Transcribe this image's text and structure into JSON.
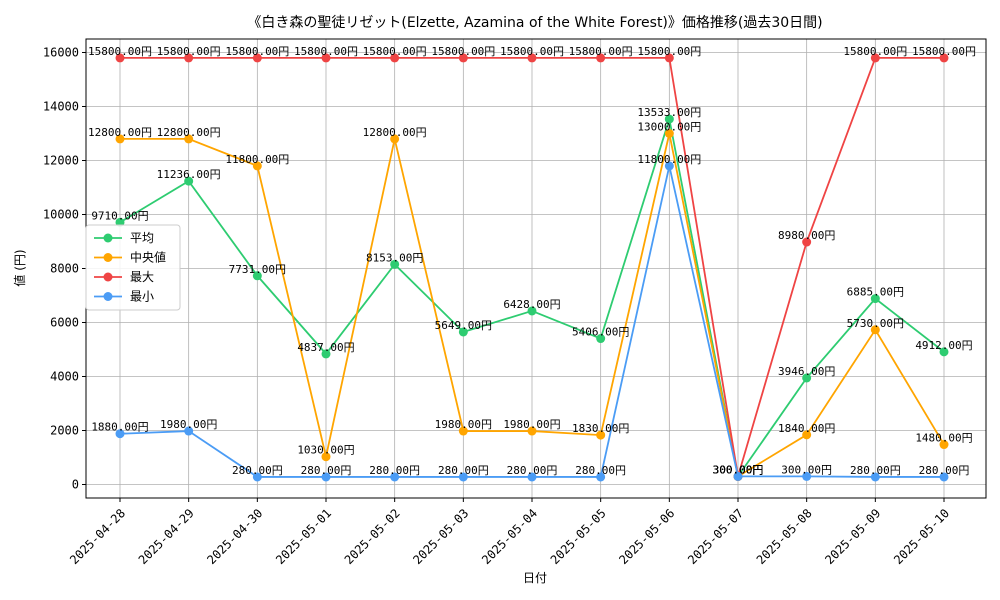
{
  "chart_data": {
    "type": "line",
    "title": "《白き森の聖徒リゼット(Elzette, Azamina of the White Forest)》価格推移(過去30日間)",
    "xlabel": "日付",
    "ylabel": "値 (円)",
    "ylim": [
      -500,
      16500
    ],
    "yticks": [
      0,
      2000,
      4000,
      6000,
      8000,
      10000,
      12000,
      14000,
      16000
    ],
    "grid": true,
    "legend_position": "center-left",
    "label_suffix": ".00円",
    "categories": [
      "2025-04-28",
      "2025-04-29",
      "2025-04-30",
      "2025-05-01",
      "2025-05-02",
      "2025-05-03",
      "2025-05-04",
      "2025-05-05",
      "2025-05-06",
      "2025-05-07",
      "2025-05-08",
      "2025-05-09",
      "2025-05-10"
    ],
    "series": [
      {
        "name": "平均",
        "color": "#2ecc71",
        "values": [
          9710,
          11236,
          7731,
          4837,
          8153,
          5649,
          6428,
          5406,
          13533,
          300,
          3946,
          6885,
          4912
        ]
      },
      {
        "name": "中央値",
        "color": "#ffa500",
        "values": [
          12800,
          12800,
          11800,
          1030,
          12800,
          1980,
          1980,
          1830,
          13000,
          300,
          1840,
          5730,
          1480
        ]
      },
      {
        "name": "最大",
        "color": "#ef4444",
        "values": [
          15800,
          15800,
          15800,
          15800,
          15800,
          15800,
          15800,
          15800,
          15800,
          300,
          8980,
          15800,
          15800
        ]
      },
      {
        "name": "最小",
        "color": "#4b9cf5",
        "values": [
          1880,
          1980,
          280,
          280,
          280,
          280,
          280,
          280,
          11800,
          300,
          300,
          280,
          280
        ]
      }
    ],
    "data_labels": [
      [
        "9710.00円",
        "11236.00円",
        "7731.00円",
        "4837.00円",
        "8153.00円",
        "5649.00円",
        "6428.00円",
        "5406.00円",
        "13533.00円",
        "300.00円",
        "3946.00円",
        "6885.00円",
        "4912.00円"
      ],
      [
        "12800.00円",
        "12800.00円",
        "11800.00円",
        "1030.00円",
        "12800.00円",
        "1980.00円",
        "1980.00円",
        "1830.00円",
        "13000.00円",
        "300.00円",
        "1840.00円",
        "5730.00円",
        "1480.00円"
      ],
      [
        "15800.00円",
        "15800.00円",
        "15800.00円",
        "15800.00円",
        "15800.00円",
        "15800.00円",
        "15800.00円",
        "15800.00円",
        "15800.00円",
        "300.00円",
        "8980.00円",
        "15800.00円",
        "15800.00円"
      ],
      [
        "1880.00円",
        "1980.00円",
        "280.00円",
        "280.00円",
        "280.00円",
        "280.00円",
        "280.00円",
        "280.00円",
        "11800.00円",
        "300.00円",
        "300.00円",
        "280.00円",
        "280.00円"
      ]
    ]
  }
}
